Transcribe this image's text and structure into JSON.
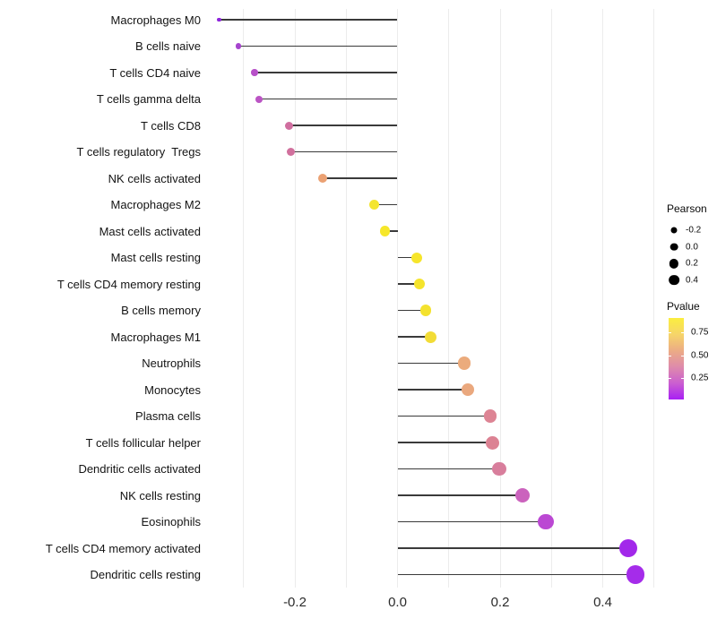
{
  "chart_data": {
    "type": "lollipop",
    "title": "",
    "xlabel": "",
    "ylabel": "",
    "xlim": [
      -0.37,
      0.51
    ],
    "grid": "vertical-only",
    "gridline_values": [
      -0.3,
      -0.2,
      -0.1,
      0.0,
      0.1,
      0.2,
      0.3,
      0.4,
      0.5
    ],
    "x_ticks": [
      {
        "value": -0.2,
        "label": "-0.2"
      },
      {
        "value": 0.0,
        "label": "0.0"
      },
      {
        "value": 0.2,
        "label": "0.2"
      },
      {
        "value": 0.4,
        "label": "0.4"
      }
    ],
    "categories": [
      "Macrophages M0",
      "B cells naive",
      "T cells CD4 naive",
      "T cells gamma delta",
      "T cells CD8",
      "T cells regulatory  Tregs",
      "NK cells activated",
      "Macrophages M2",
      "Mast cells activated",
      "Mast cells resting",
      "T cells CD4 memory resting",
      "B cells memory",
      "Macrophages M1",
      "Neutrophils",
      "Monocytes",
      "Plasma cells",
      "T cells follicular helper",
      "Dendritic cells activated",
      "NK cells resting",
      "Eosinophils",
      "T cells CD4 memory activated",
      "Dendritic cells resting"
    ],
    "points": [
      {
        "label": "Macrophages M0",
        "pearson": -0.348,
        "size": 4.5,
        "color": "#8E24DC"
      },
      {
        "label": "B cells naive",
        "pearson": -0.31,
        "size": 6.5,
        "color": "#A644CE"
      },
      {
        "label": "T cells CD4 naive",
        "pearson": -0.279,
        "size": 7.5,
        "color": "#B750C8"
      },
      {
        "label": "T cells gamma delta",
        "pearson": -0.27,
        "size": 8.0,
        "color": "#BB54C4"
      },
      {
        "label": "T cells CD8",
        "pearson": -0.212,
        "size": 9.0,
        "color": "#D06E9F"
      },
      {
        "label": "T cells regulatory  Tregs",
        "pearson": -0.207,
        "size": 9.0,
        "color": "#D1709D"
      },
      {
        "label": "NK cells activated",
        "pearson": -0.146,
        "size": 10.0,
        "color": "#EBA173"
      },
      {
        "label": "Macrophages M2",
        "pearson": -0.045,
        "size": 11.3,
        "color": "#F4E52F"
      },
      {
        "label": "Mast cells activated",
        "pearson": -0.025,
        "size": 11.3,
        "color": "#F6E72A"
      },
      {
        "label": "Mast cells resting",
        "pearson": 0.038,
        "size": 12.0,
        "color": "#F6E52B"
      },
      {
        "label": "T cells CD4 memory resting",
        "pearson": 0.043,
        "size": 12.3,
        "color": "#F5E42C"
      },
      {
        "label": "B cells memory",
        "pearson": 0.055,
        "size": 12.7,
        "color": "#F4E22E"
      },
      {
        "label": "Macrophages M1",
        "pearson": 0.064,
        "size": 13.0,
        "color": "#F2DC36"
      },
      {
        "label": "Neutrophils",
        "pearson": 0.13,
        "size": 14.3,
        "color": "#EBAB7C"
      },
      {
        "label": "Monocytes",
        "pearson": 0.137,
        "size": 14.7,
        "color": "#EAA87E"
      },
      {
        "label": "Plasma cells",
        "pearson": 0.181,
        "size": 14.7,
        "color": "#DD8494"
      },
      {
        "label": "T cells follicular helper",
        "pearson": 0.186,
        "size": 15.0,
        "color": "#DC8293"
      },
      {
        "label": "Dendritic cells activated",
        "pearson": 0.198,
        "size": 15.3,
        "color": "#D87E9C"
      },
      {
        "label": "NK cells resting",
        "pearson": 0.244,
        "size": 16.3,
        "color": "#CB62BD"
      },
      {
        "label": "Eosinophils",
        "pearson": 0.289,
        "size": 17.3,
        "color": "#BB48D3"
      },
      {
        "label": "T cells CD4 memory activated",
        "pearson": 0.45,
        "size": 20.0,
        "color": "#A228EA"
      },
      {
        "label": "Dendritic cells resting",
        "pearson": 0.464,
        "size": 20.7,
        "color": "#A52CEA"
      }
    ],
    "legends": {
      "pearson": {
        "title": "Pearson",
        "entries": [
          {
            "label": "-0.2",
            "size": 7.0
          },
          {
            "label": "0.0",
            "size": 8.7
          },
          {
            "label": "0.2",
            "size": 10.3
          },
          {
            "label": "0.4",
            "size": 11.7
          }
        ]
      },
      "pvalue": {
        "title": "Pvalue",
        "domain_top": 0.91,
        "domain_bottom": 0.015,
        "ticks": [
          {
            "value": 0.75,
            "label": "0.75"
          },
          {
            "value": 0.5,
            "label": "0.50"
          },
          {
            "value": 0.25,
            "label": "0.25"
          }
        ],
        "gradient_stops": [
          "#FBEE3F",
          "#F6D569",
          "#ECAC85",
          "#DE8BAB",
          "#CB5FD0",
          "#A81FF4"
        ]
      }
    }
  }
}
